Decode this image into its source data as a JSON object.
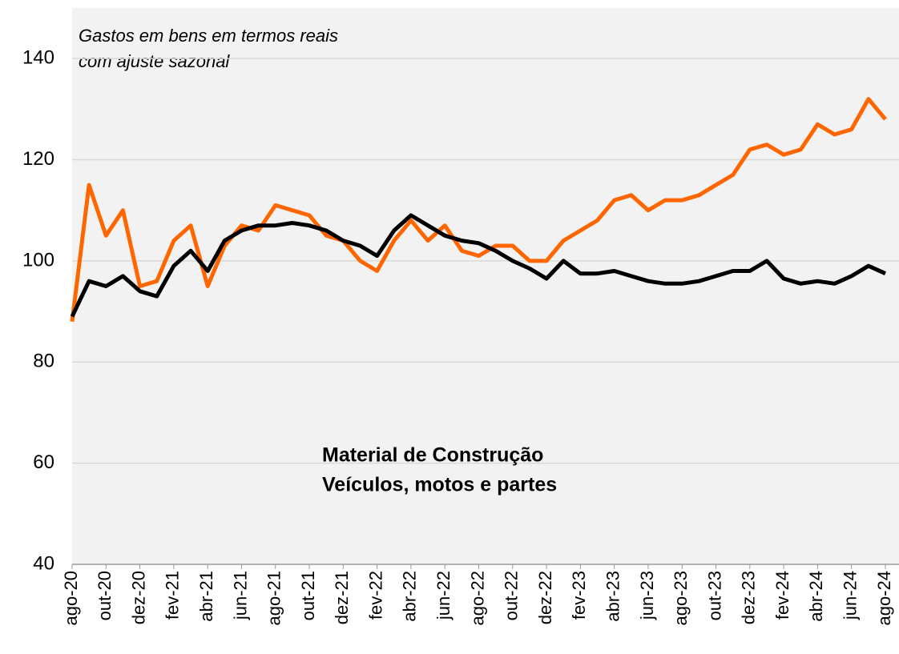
{
  "chart_data": {
    "type": "line",
    "title": "Gastos em bens em termos reais",
    "subtitle": "com ajuste sazonal",
    "categories": [
      "ago-20",
      null,
      "out-20",
      null,
      "dez-20",
      null,
      "fev-21",
      null,
      "abr-21",
      null,
      "jun-21",
      null,
      "ago-21",
      null,
      "out-21",
      null,
      "dez-21",
      null,
      "fev-22",
      null,
      "abr-22",
      null,
      "jun-22",
      null,
      "ago-22",
      null,
      "out-22",
      null,
      "dez-22",
      null,
      "fev-23",
      null,
      "abr-23",
      null,
      "jun-23",
      null,
      "ago-23",
      null,
      "out-23",
      null,
      "dez-23",
      null,
      "fev-24",
      null,
      "abr-24",
      null,
      "jun-24",
      null,
      "ago-24"
    ],
    "series": [
      {
        "name": "Material de Construção",
        "color": "#000000",
        "values": [
          89,
          96,
          95,
          97,
          94,
          93,
          99,
          102,
          98,
          104,
          106,
          107,
          107,
          107.5,
          107,
          106,
          104,
          103,
          101,
          106,
          109,
          107,
          105,
          104,
          103.5,
          102,
          100,
          98.5,
          96.5,
          100,
          97.5,
          97.5,
          98,
          97,
          96,
          95.5,
          95.5,
          96,
          97,
          98,
          98,
          100,
          96.5,
          95.5,
          96,
          95.5,
          97,
          99,
          97.5
        ]
      },
      {
        "name": "Veículos, motos e partes",
        "color": "#ff6600",
        "values": [
          88,
          115,
          105,
          110,
          95,
          96,
          104,
          107,
          95,
          103,
          107,
          106,
          111,
          110,
          109,
          105,
          104,
          100,
          98,
          104,
          108,
          104,
          107,
          102,
          101,
          103,
          103,
          100,
          100,
          104,
          106,
          108,
          112,
          113,
          110,
          112,
          112,
          113,
          115,
          117,
          122,
          123,
          121,
          122,
          127,
          125,
          126,
          132,
          128
        ]
      }
    ],
    "ylim": [
      40,
      150
    ],
    "yticks": [
      40,
      60,
      80,
      100,
      120,
      140
    ],
    "grid": true
  }
}
